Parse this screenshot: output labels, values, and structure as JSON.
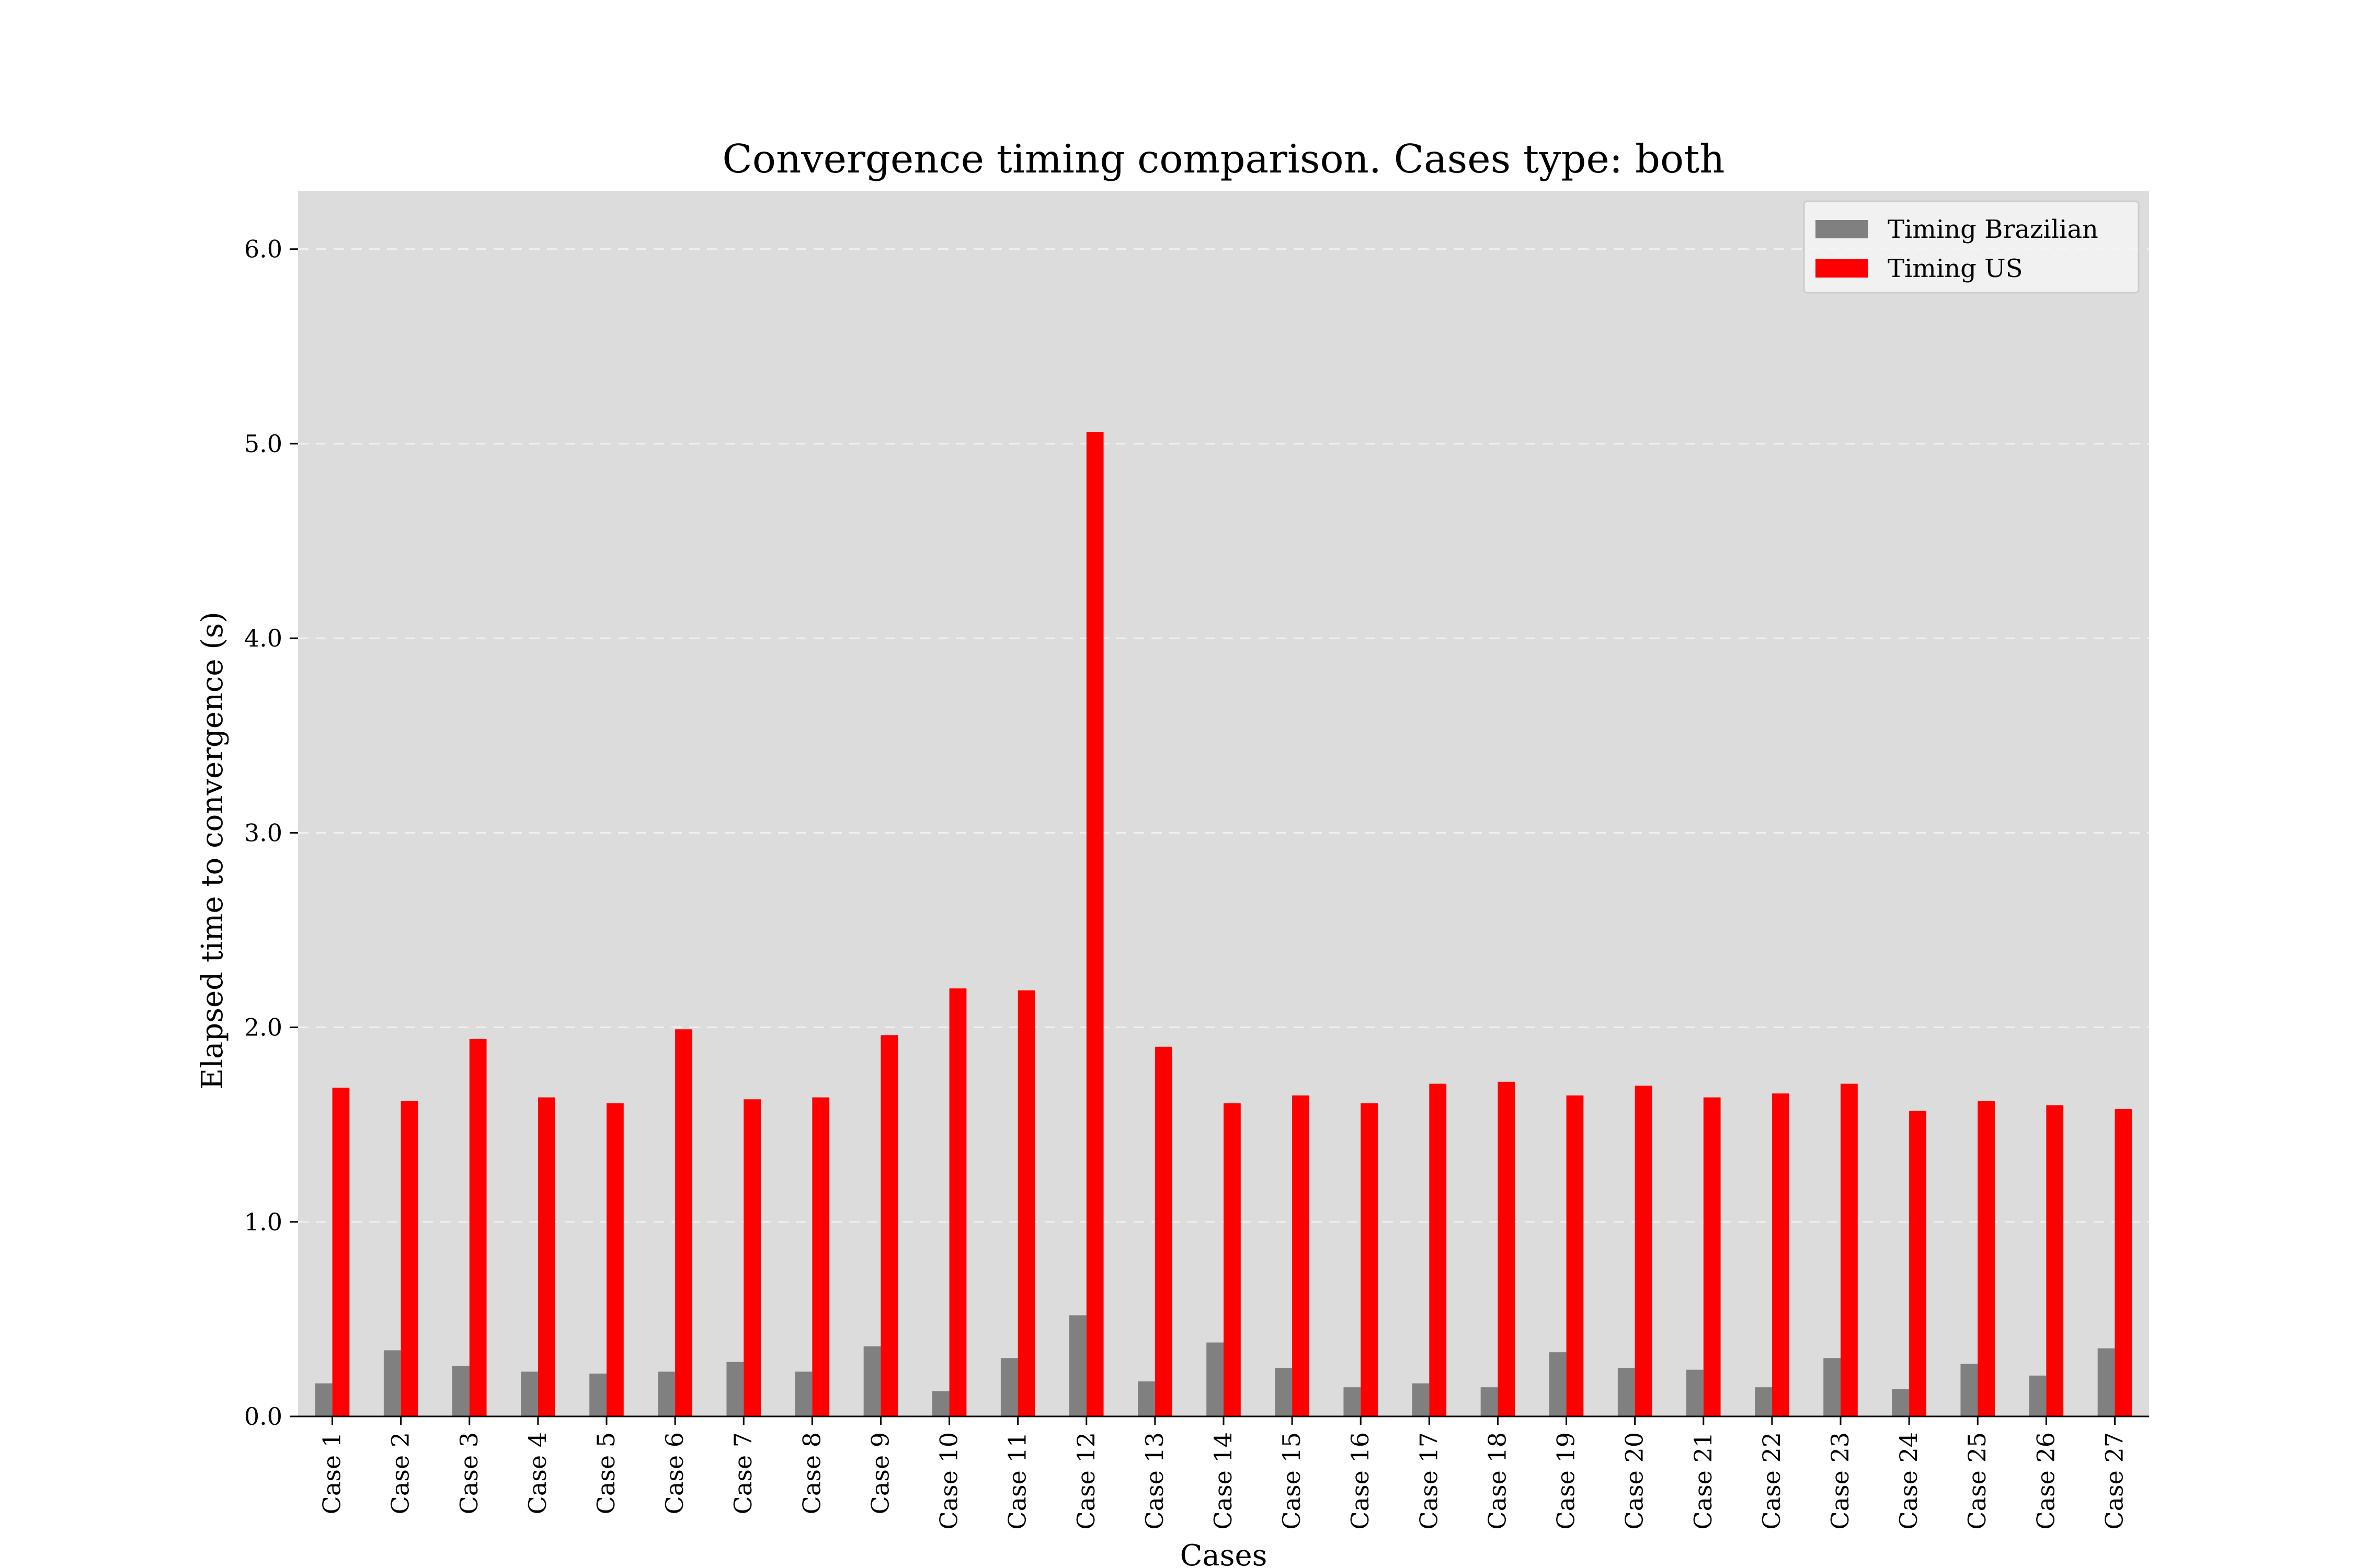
{
  "chart_data": {
    "type": "bar",
    "title": "Convergence timing comparison. Cases type: both",
    "xlabel": "Cases",
    "ylabel": "Elapsed time to convergence (s)",
    "ylim": [
      0,
      6.3
    ],
    "yticks": [
      "0.0",
      "1.0",
      "2.0",
      "3.0",
      "4.0",
      "5.0",
      "6.0"
    ],
    "grid": "y, dashed",
    "legend_position": "top-right",
    "categories": [
      "Case 1",
      "Case 2",
      "Case 3",
      "Case 4",
      "Case 5",
      "Case 6",
      "Case 7",
      "Case 8",
      "Case 9",
      "Case 10",
      "Case 11",
      "Case 12",
      "Case 13",
      "Case 14",
      "Case 15",
      "Case 16",
      "Case 17",
      "Case 18",
      "Case 19",
      "Case 20",
      "Case 21",
      "Case 22",
      "Case 23",
      "Case 24",
      "Case 25",
      "Case 26",
      "Case 27"
    ],
    "series": [
      {
        "name": "Timing Brazilian",
        "color": "#808080",
        "values": [
          0.17,
          0.34,
          0.26,
          0.23,
          0.22,
          0.23,
          0.28,
          0.23,
          0.36,
          0.13,
          0.3,
          0.52,
          0.18,
          0.38,
          0.25,
          0.15,
          0.17,
          0.15,
          0.33,
          0.25,
          0.24,
          0.15,
          0.3,
          0.14,
          0.27,
          0.21,
          0.35
        ]
      },
      {
        "name": "Timing US",
        "color": "#ff0000",
        "values": [
          1.69,
          1.62,
          1.94,
          1.64,
          1.61,
          1.99,
          1.63,
          1.64,
          1.96,
          2.2,
          2.19,
          5.06,
          1.9,
          1.61,
          1.65,
          1.61,
          1.71,
          1.72,
          1.65,
          1.7,
          1.64,
          1.66,
          1.71,
          1.57,
          1.62,
          1.6,
          1.58
        ]
      }
    ],
    "plot_background": "#dcdcdc"
  }
}
